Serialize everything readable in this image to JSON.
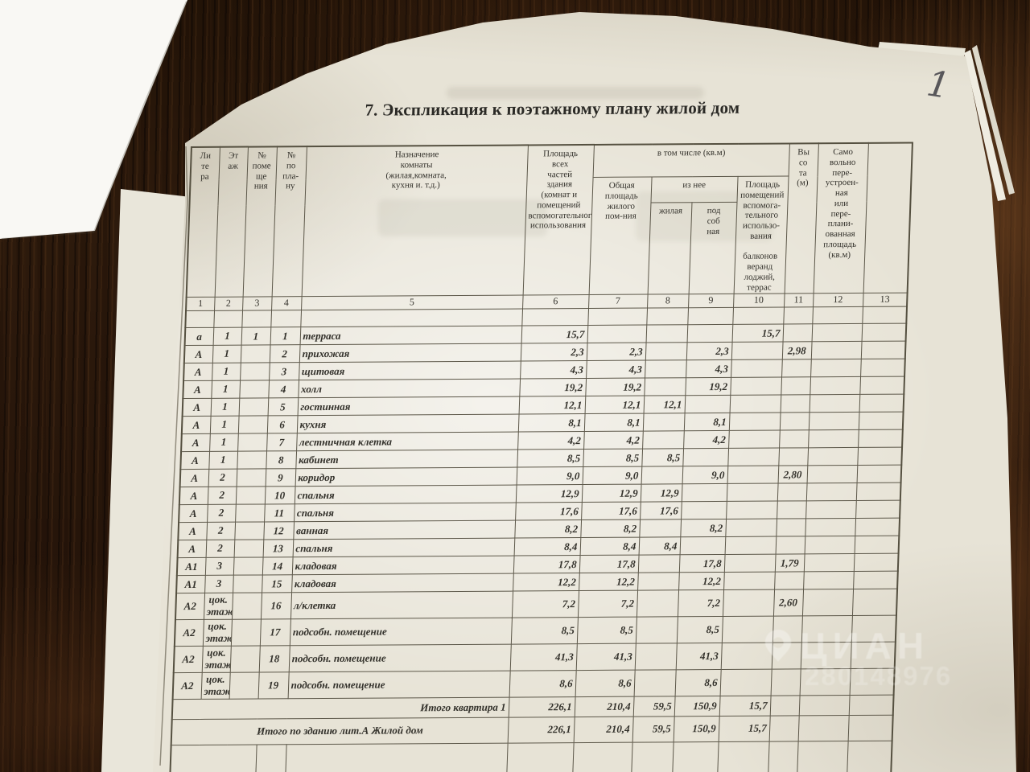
{
  "page": {
    "corner_note": "1"
  },
  "title": "7. Экспликация к поэтажному плану жилой дом",
  "watermark": {
    "brand": "ЦИАН",
    "number": "280148976"
  },
  "table": {
    "header": {
      "litera": "Ли\nте\nра",
      "etazh": "Эт\nаж",
      "pom": "№\nпоме\nще\nния",
      "plan": "№\nпо\nпла-\nну",
      "naznachenie": "Назначение\nкомнаты\n(жилая,комната,\nкухня и. т.д.)",
      "total_area": "Площадь\nвсех\nчастей\nздания\n(комнат и\nпомещений\nвспомогательного\nиспользования",
      "including": "в том числе (кв.м)",
      "obshchaya": "Общая\nплощадь\nжилого\nпом-ния",
      "iz_nee": "из нее",
      "zhilaya": "жилая",
      "podsobnaya": "под\nсоб\nная",
      "aux_area": "Площадь\nпомещений\nвспомога-\nтельного\nиспользо-\nвания\n\nбалконов\nверанд\nлоджий,\nтеррас",
      "vysota": "Вы\nсо\nта\n(м)",
      "samovolno": "Само\nвольно\nпере-\nустроен-\nная\nили\nпере-\nплани-\nованная\nплощадь\n(кв.м)",
      "col13": ""
    },
    "column_numbers": [
      "1",
      "2",
      "3",
      "4",
      "5",
      "6",
      "7",
      "8",
      "9",
      "10",
      "11",
      "12",
      "13"
    ],
    "rows": [
      [
        "а",
        "1",
        "1",
        "1",
        "терраса",
        "15,7",
        "",
        "",
        "",
        "15,7",
        "",
        "",
        ""
      ],
      [
        "А",
        "1",
        "",
        "2",
        "прихожая",
        "2,3",
        "2,3",
        "",
        "2,3",
        "",
        "2,98",
        "",
        ""
      ],
      [
        "А",
        "1",
        "",
        "3",
        "щитовая",
        "4,3",
        "4,3",
        "",
        "4,3",
        "",
        "",
        "",
        ""
      ],
      [
        "А",
        "1",
        "",
        "4",
        "холл",
        "19,2",
        "19,2",
        "",
        "19,2",
        "",
        "",
        "",
        ""
      ],
      [
        "А",
        "1",
        "",
        "5",
        "гостинная",
        "12,1",
        "12,1",
        "12,1",
        "",
        "",
        "",
        "",
        ""
      ],
      [
        "А",
        "1",
        "",
        "6",
        "кухня",
        "8,1",
        "8,1",
        "",
        "8,1",
        "",
        "",
        "",
        ""
      ],
      [
        "А",
        "1",
        "",
        "7",
        "лестничная клетка",
        "4,2",
        "4,2",
        "",
        "4,2",
        "",
        "",
        "",
        ""
      ],
      [
        "А",
        "1",
        "",
        "8",
        "кабинет",
        "8,5",
        "8,5",
        "8,5",
        "",
        "",
        "",
        "",
        ""
      ],
      [
        "А",
        "2",
        "",
        "9",
        "коридор",
        "9,0",
        "9,0",
        "",
        "9,0",
        "",
        "2,80",
        "",
        ""
      ],
      [
        "А",
        "2",
        "",
        "10",
        "спальня",
        "12,9",
        "12,9",
        "12,9",
        "",
        "",
        "",
        "",
        ""
      ],
      [
        "А",
        "2",
        "",
        "11",
        "спальня",
        "17,6",
        "17,6",
        "17,6",
        "",
        "",
        "",
        "",
        ""
      ],
      [
        "А",
        "2",
        "",
        "12",
        "ванная",
        "8,2",
        "8,2",
        "",
        "8,2",
        "",
        "",
        "",
        ""
      ],
      [
        "А",
        "2",
        "",
        "13",
        "спальня",
        "8,4",
        "8,4",
        "8,4",
        "",
        "",
        "",
        "",
        ""
      ],
      [
        "А1",
        "3",
        "",
        "14",
        "кладовая",
        "17,8",
        "17,8",
        "",
        "17,8",
        "",
        "1,79",
        "",
        ""
      ],
      [
        "А1",
        "3",
        "",
        "15",
        "кладовая",
        "12,2",
        "12,2",
        "",
        "12,2",
        "",
        "",
        "",
        ""
      ],
      [
        "А2",
        "цок.\nэтаж",
        "",
        "16",
        "л/клетка",
        "7,2",
        "7,2",
        "",
        "7,2",
        "",
        "2,60",
        "",
        ""
      ],
      [
        "А2",
        "цок.\nэтаж",
        "",
        "17",
        "подсобн. помещение",
        "8,5",
        "8,5",
        "",
        "8,5",
        "",
        "",
        "",
        ""
      ],
      [
        "А2",
        "цок.\nэтаж",
        "",
        "18",
        "подсобн. помещение",
        "41,3",
        "41,3",
        "",
        "41,3",
        "",
        "",
        "",
        ""
      ],
      [
        "А2",
        "цок.\nэтаж",
        "",
        "19",
        "подсобн. помещение",
        "8,6",
        "8,6",
        "",
        "8,6",
        "",
        "",
        "",
        ""
      ]
    ],
    "totals": [
      {
        "label": "Итого квартира 1",
        "values": [
          "226,1",
          "210,4",
          "59,5",
          "150,9",
          "15,7",
          "",
          "",
          ""
        ]
      },
      {
        "label": "Итого по зданию  лит.А  Жилой дом",
        "values": [
          "226,1",
          "210,4",
          "59,5",
          "150,9",
          "15,7",
          "",
          "",
          ""
        ]
      }
    ]
  }
}
